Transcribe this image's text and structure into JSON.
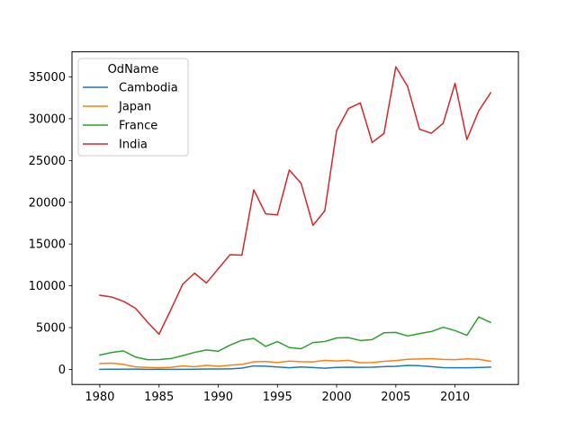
{
  "chart_data": {
    "type": "line",
    "title": "",
    "xlabel": "",
    "ylabel": "",
    "xlim": [
      1977.65,
      2015.35
    ],
    "ylim": [
      -1800,
      38000
    ],
    "x_ticks": [
      1980,
      1985,
      1990,
      1995,
      2000,
      2005,
      2010
    ],
    "y_ticks": [
      0,
      5000,
      10000,
      15000,
      20000,
      25000,
      30000,
      35000
    ],
    "x_tick_labels": [
      "1980",
      "1985",
      "1990",
      "1995",
      "2000",
      "2005",
      "2010"
    ],
    "y_tick_labels": [
      "0",
      "5000",
      "10000",
      "15000",
      "20000",
      "25000",
      "30000",
      "35000"
    ],
    "grid": false,
    "legend": {
      "title": "OdName",
      "position": "upper-left"
    },
    "x": [
      1980,
      1981,
      1982,
      1983,
      1984,
      1985,
      1986,
      1987,
      1988,
      1989,
      1990,
      1991,
      1992,
      1993,
      1994,
      1995,
      1996,
      1997,
      1998,
      1999,
      2000,
      2001,
      2002,
      2003,
      2004,
      2005,
      2006,
      2007,
      2008,
      2009,
      2010,
      2011,
      2012,
      2013
    ],
    "series": [
      {
        "name": "Cambodia",
        "color": "#1f77b4",
        "values": [
          12,
          19,
          26,
          33,
          10,
          7,
          8,
          17,
          21,
          48,
          56,
          62,
          165,
          422,
          385,
          295,
          200,
          296,
          232,
          150,
          241,
          270,
          258,
          273,
          336,
          378,
          485,
          441,
          335,
          211,
          204,
          199,
          230,
          284
        ]
      },
      {
        "name": "Japan",
        "color": "#ff7f0e",
        "values": [
          701,
          756,
          598,
          309,
          246,
          198,
          248,
          422,
          324,
          494,
          379,
          506,
          605,
          907,
          956,
          826,
          994,
          924,
          897,
          1083,
          1010,
          1092,
          806,
          817,
          973,
          1067,
          1212,
          1250,
          1284,
          1194,
          1168,
          1265,
          1214,
          982
        ]
      },
      {
        "name": "France",
        "color": "#2ca02c",
        "values": [
          1729,
          2027,
          2219,
          1490,
          1169,
          1177,
          1298,
          1658,
          2038,
          2332,
          2177,
          2911,
          3487,
          3709,
          2759,
          3332,
          2623,
          2473,
          3214,
          3343,
          3765,
          3806,
          3463,
          3568,
          4391,
          4429,
          4002,
          4290,
          4532,
          5051,
          4646,
          4080,
          6280,
          5623
        ]
      },
      {
        "name": "India",
        "color": "#d62728",
        "values": [
          8880,
          8670,
          8147,
          7338,
          5704,
          4211,
          7150,
          10189,
          11522,
          10343,
          12041,
          13734,
          13673,
          21496,
          18620,
          18489,
          23859,
          22268,
          17241,
          18974,
          28572,
          31223,
          31889,
          27155,
          28235,
          36210,
          33848,
          28742,
          28261,
          29456,
          34235,
          27509,
          30933,
          33087
        ]
      }
    ]
  }
}
